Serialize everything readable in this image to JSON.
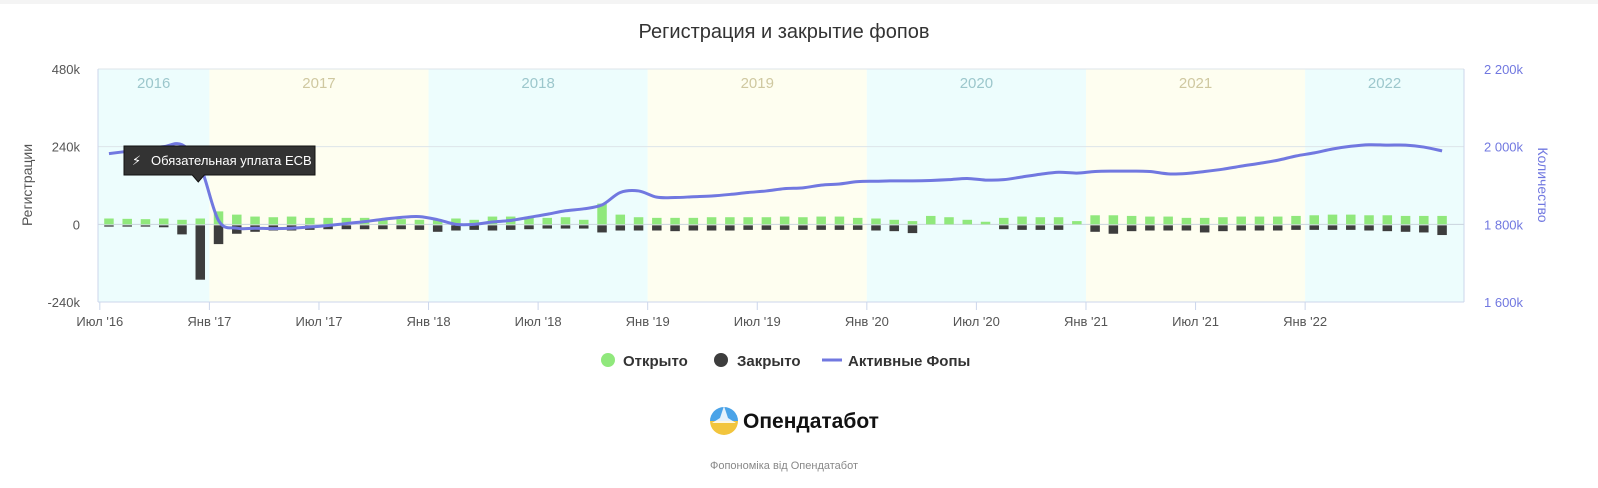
{
  "chart_data": {
    "type": "bar",
    "title": "Регистрация и закрытие фопов",
    "y_left": {
      "label": "Регистрации",
      "range": [
        -240000,
        480000
      ],
      "ticks": [
        -240000,
        0,
        240000,
        480000
      ],
      "tick_labels": [
        "-240k",
        "0",
        "240k",
        "480k"
      ]
    },
    "y_right": {
      "label": "Количество",
      "range": [
        1600000,
        2200000
      ],
      "ticks": [
        1600000,
        1800000,
        2000000,
        2200000
      ],
      "tick_labels": [
        "1 600k",
        "1 800k",
        "2 000k",
        "2 200k"
      ]
    },
    "x_ticks": [
      "Июл '16",
      "Янв '17",
      "Июл '17",
      "Янв '18",
      "Июл '18",
      "Янв '19",
      "Июл '19",
      "Янв '20",
      "Июл '20",
      "Янв '21",
      "Июл '21",
      "Янв '22"
    ],
    "x_start": "2016-07",
    "year_bands": [
      {
        "label": "2016",
        "color": "#edfdfd",
        "text_color": "#9cc7cc"
      },
      {
        "label": "2017",
        "color": "#fefef0",
        "text_color": "#cfc8a0"
      },
      {
        "label": "2018",
        "color": "#edfdfd",
        "text_color": "#9cc7cc"
      },
      {
        "label": "2019",
        "color": "#fefef0",
        "text_color": "#cfc8a0"
      },
      {
        "label": "2020",
        "color": "#edfdfd",
        "text_color": "#9cc7cc"
      },
      {
        "label": "2021",
        "color": "#fefef0",
        "text_color": "#cfc8a0"
      },
      {
        "label": "2022",
        "color": "#edfdfd",
        "text_color": "#9cc7cc"
      }
    ],
    "series": [
      {
        "name": "Открыто",
        "type": "bar",
        "color": "#90e87c",
        "values": [
          18000,
          17000,
          16000,
          18000,
          14000,
          18000,
          40000,
          30000,
          24000,
          22000,
          24000,
          20000,
          20000,
          20000,
          20000,
          18000,
          16000,
          14000,
          14000,
          18000,
          14000,
          24000,
          24000,
          20000,
          20000,
          22000,
          14000,
          64000,
          30000,
          22000,
          20000,
          20000,
          20000,
          22000,
          22000,
          22000,
          22000,
          24000,
          22000,
          24000,
          24000,
          20000,
          18000,
          14000,
          10000,
          26000,
          22000,
          14000,
          8000,
          20000,
          24000,
          22000,
          22000,
          10000,
          28000,
          28000,
          26000,
          24000,
          24000,
          20000,
          20000,
          22000,
          24000,
          24000,
          24000,
          26000,
          28000,
          30000,
          30000,
          28000,
          28000,
          26000,
          26000,
          26000
        ]
      },
      {
        "name": "Закрыто",
        "type": "bar",
        "color": "#3d3d3d",
        "values": [
          -4000,
          -4000,
          -4000,
          -6000,
          -28000,
          -168000,
          -58000,
          -26000,
          -20000,
          -16000,
          -16000,
          -14000,
          -12000,
          -12000,
          -12000,
          -12000,
          -12000,
          -14000,
          -20000,
          -16000,
          -14000,
          -16000,
          -14000,
          -12000,
          -10000,
          -10000,
          -10000,
          -22000,
          -16000,
          -16000,
          -16000,
          -18000,
          -16000,
          -16000,
          -16000,
          -14000,
          -14000,
          -14000,
          -14000,
          -14000,
          -14000,
          -14000,
          -16000,
          -18000,
          -24000,
          0,
          0,
          0,
          0,
          -12000,
          -14000,
          -14000,
          -14000,
          0,
          -20000,
          -26000,
          -18000,
          -16000,
          -16000,
          -16000,
          -22000,
          -18000,
          -16000,
          -16000,
          -16000,
          -14000,
          -14000,
          -14000,
          -14000,
          -16000,
          -18000,
          -20000,
          -22000,
          -30000
        ]
      },
      {
        "name": "Активные Фопы",
        "type": "line",
        "color": "#7178e0",
        "values": [
          1982000,
          1988000,
          1994000,
          2000000,
          2005000,
          1950000,
          1810000,
          1790000,
          1790000,
          1789000,
          1790000,
          1793000,
          1797000,
          1802000,
          1807000,
          1813000,
          1818000,
          1820000,
          1812000,
          1800000,
          1800000,
          1806000,
          1810000,
          1818000,
          1826000,
          1835000,
          1840000,
          1850000,
          1882000,
          1886000,
          1870000,
          1869000,
          1871000,
          1873000,
          1877000,
          1882000,
          1886000,
          1892000,
          1894000,
          1901000,
          1904000,
          1910000,
          1911000,
          1912000,
          1912000,
          1913000,
          1915000,
          1918000,
          1914000,
          1915000,
          1922000,
          1929000,
          1934000,
          1932000,
          1936000,
          1937000,
          1937000,
          1936000,
          1930000,
          1931000,
          1936000,
          1942000,
          1950000,
          1957000,
          1965000,
          1976000,
          1984000,
          1994000,
          2001000,
          2005000,
          2004000,
          2004000,
          1999000,
          1989000
        ]
      }
    ],
    "legend": {
      "placement": "bottom",
      "items": [
        "Открыто",
        "Закрыто",
        "Активные Фопы"
      ]
    },
    "annotation": {
      "icon": "lightning-icon",
      "glyph": "⚡",
      "text": "Обязательная уплата ЕСВ",
      "at_index": 6
    }
  },
  "branding": {
    "logo_text": "Опендатабот",
    "credit": "Фопономіка від Опендатабот"
  }
}
